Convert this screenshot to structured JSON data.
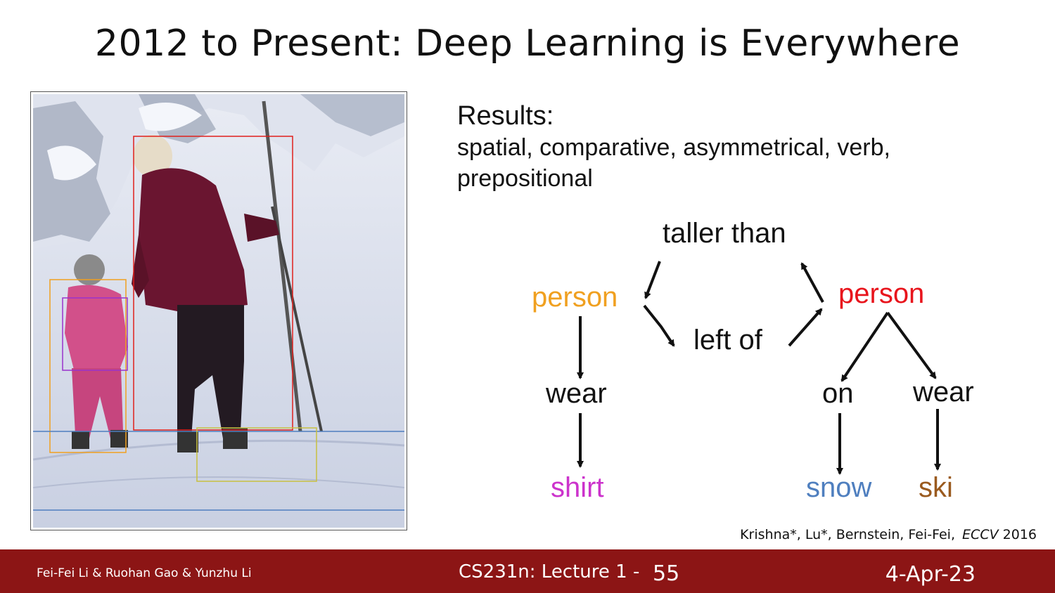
{
  "slide": {
    "title": "2012 to Present: Deep Learning is Everywhere"
  },
  "results": {
    "heading": "Results:",
    "line1": "spatial, comparative, asymmetrical, verb,",
    "line2": "prepositional"
  },
  "scene_graph": {
    "nodes": {
      "taller_than": "taller than",
      "person_left": "person",
      "left_of": "left of",
      "person_right": "person",
      "wear_left": "wear",
      "shirt": "shirt",
      "on": "on",
      "wear_right": "wear",
      "snow": "snow",
      "ski": "ski"
    },
    "colors": {
      "person_left": "#f0a020",
      "person_right": "#e8141c",
      "shirt": "#cc33cc",
      "snow": "#4f7fbf",
      "ski": "#9a5a1e",
      "relation": "#111111"
    }
  },
  "bounding_boxes": {
    "colors": {
      "adult": "#e0201c",
      "child": "#f0a020",
      "shirt": "#9933cc",
      "snow": "#4f7fbf",
      "ski": "#c8c040"
    }
  },
  "citation": {
    "authors": "Krishna*, Lu*, Bernstein, Fei-Fei,",
    "venue": "ECCV",
    "year": "2016"
  },
  "footer": {
    "authors": "Fei-Fei Li & Ruohan Gao & Yunzhu Li",
    "course": "CS231n: Lecture 1 -",
    "page": "55",
    "date": "4-Apr-23",
    "bar_color": "#8c1515"
  }
}
